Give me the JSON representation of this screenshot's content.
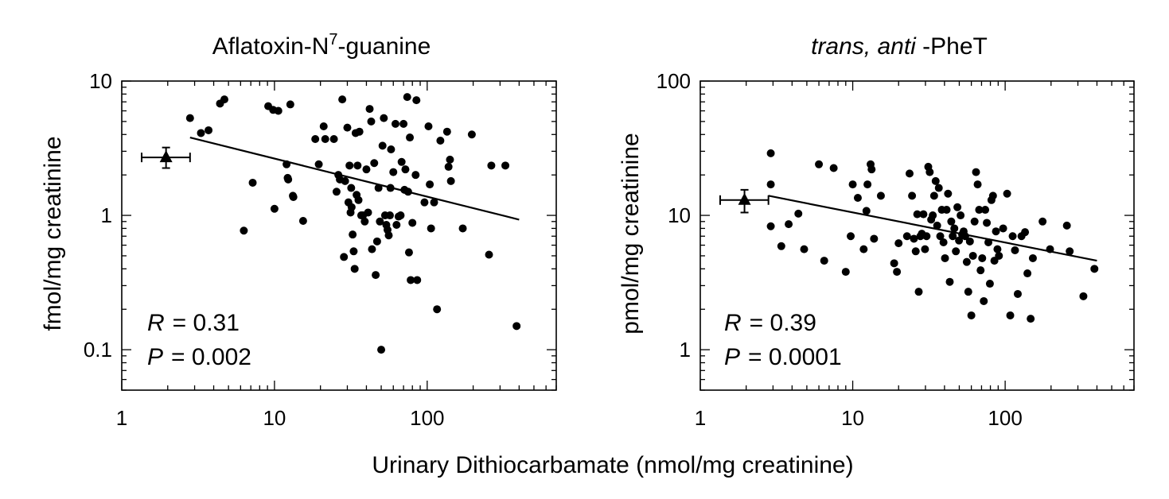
{
  "shared_xlabel": "Urinary Dithiocarbamate (nmol/mg creatinine)",
  "chart_data": [
    {
      "type": "scatter",
      "title_main": "Aflatoxin-N",
      "title_sup": "7",
      "title_rest": "-guanine",
      "ylabel": "fmol/mg creatinine",
      "x_scale": "log",
      "y_scale": "log",
      "xlim": [
        1,
        700
      ],
      "ylim": [
        0.05,
        10
      ],
      "x_ticks": [
        1,
        10,
        100
      ],
      "x_tick_labels": [
        "1",
        "10",
        "100"
      ],
      "y_ticks": [
        0.1,
        1,
        10
      ],
      "y_tick_labels": [
        "0.1",
        "1",
        "10"
      ],
      "stat_r_label": "R",
      "stat_r_value": "= 0.31",
      "stat_p_label": "P",
      "stat_p_value": "= 0.002",
      "reference_point": {
        "x": 1.95,
        "y": 2.7,
        "x_err": [
          1.35,
          2.8
        ],
        "y_err": [
          2.25,
          3.2
        ]
      },
      "fit_line": [
        [
          2.8,
          3.8
        ],
        [
          400,
          0.93
        ]
      ],
      "points": [
        [
          2.8,
          5.3
        ],
        [
          3.3,
          4.1
        ],
        [
          3.7,
          4.3
        ],
        [
          4.4,
          6.8
        ],
        [
          4.7,
          7.3
        ],
        [
          6.3,
          0.77
        ],
        [
          7.2,
          1.75
        ],
        [
          9.1,
          6.5
        ],
        [
          9.8,
          6.1
        ],
        [
          10.6,
          6.0
        ],
        [
          10,
          1.12
        ],
        [
          12,
          2.4
        ],
        [
          12.2,
          1.9
        ],
        [
          12.3,
          1.85
        ],
        [
          12.7,
          6.7
        ],
        [
          13.2,
          1.4
        ],
        [
          13.3,
          1.37
        ],
        [
          15.4,
          0.91
        ],
        [
          18.5,
          3.7
        ],
        [
          19.5,
          2.4
        ],
        [
          21,
          4.6
        ],
        [
          21.5,
          3.7
        ],
        [
          24.5,
          3.7
        ],
        [
          25.5,
          1.5
        ],
        [
          26.2,
          2.0
        ],
        [
          26.8,
          1.85
        ],
        [
          27.8,
          7.3
        ],
        [
          28.5,
          0.49
        ],
        [
          29,
          1.8
        ],
        [
          30,
          4.5
        ],
        [
          30.5,
          1.25
        ],
        [
          31,
          2.35
        ],
        [
          31.5,
          1.05
        ],
        [
          31.8,
          1.6
        ],
        [
          32,
          1.15
        ],
        [
          32.5,
          0.72
        ],
        [
          33,
          0.54
        ],
        [
          33.5,
          0.4
        ],
        [
          34,
          4.1
        ],
        [
          34.5,
          1.42
        ],
        [
          35,
          2.35
        ],
        [
          35.5,
          1.3
        ],
        [
          36,
          4.2
        ],
        [
          37,
          1.0
        ],
        [
          38,
          1.0
        ],
        [
          39,
          0.9
        ],
        [
          40,
          2.2
        ],
        [
          41,
          1.05
        ],
        [
          42,
          6.2
        ],
        [
          43,
          5.0
        ],
        [
          43.5,
          0.56
        ],
        [
          45,
          2.45
        ],
        [
          46,
          0.36
        ],
        [
          47,
          0.64
        ],
        [
          48,
          1.6
        ],
        [
          49,
          0.9
        ],
        [
          50,
          0.1
        ],
        [
          51,
          3.3
        ],
        [
          52,
          5.3
        ],
        [
          53,
          1.0
        ],
        [
          54,
          0.85
        ],
        [
          55,
          0.78
        ],
        [
          56,
          0.71
        ],
        [
          57,
          1.0
        ],
        [
          57.5,
          1.6
        ],
        [
          58,
          3.1
        ],
        [
          60,
          2.1
        ],
        [
          62,
          4.8
        ],
        [
          63,
          0.85
        ],
        [
          65,
          0.98
        ],
        [
          67,
          1.0
        ],
        [
          68,
          2.5
        ],
        [
          70,
          4.8
        ],
        [
          71,
          1.55
        ],
        [
          72,
          2.2
        ],
        [
          74,
          7.6
        ],
        [
          75,
          1.5
        ],
        [
          76,
          0.53
        ],
        [
          77,
          3.8
        ],
        [
          78,
          0.33
        ],
        [
          80,
          0.88
        ],
        [
          84,
          2.0
        ],
        [
          85,
          7.2
        ],
        [
          86,
          0.33
        ],
        [
          96,
          1.25
        ],
        [
          102,
          4.6
        ],
        [
          104,
          1.7
        ],
        [
          106,
          0.8
        ],
        [
          111,
          1.25
        ],
        [
          116,
          0.2
        ],
        [
          122,
          3.6
        ],
        [
          135,
          4.2
        ],
        [
          138,
          2.3
        ],
        [
          141,
          2.6
        ],
        [
          143,
          1.8
        ],
        [
          171,
          0.8
        ],
        [
          196,
          4.0
        ],
        [
          254,
          0.51
        ],
        [
          263,
          2.35
        ],
        [
          325,
          2.35
        ],
        [
          385,
          0.15
        ]
      ]
    },
    {
      "type": "scatter",
      "title_italic": "trans, anti",
      "title_rest": " -PheT",
      "ylabel": "pmol/mg creatinine",
      "x_scale": "log",
      "y_scale": "log",
      "xlim": [
        1,
        700
      ],
      "ylim": [
        0.5,
        100
      ],
      "x_ticks": [
        1,
        10,
        100
      ],
      "x_tick_labels": [
        "1",
        "10",
        "100"
      ],
      "y_ticks": [
        1,
        10,
        100
      ],
      "y_tick_labels": [
        "1",
        "10",
        "100"
      ],
      "stat_r_label": "R",
      "stat_r_value": "= 0.39",
      "stat_p_label": "P",
      "stat_p_value": "= 0.0001",
      "reference_point": {
        "x": 1.95,
        "y": 13,
        "x_err": [
          1.35,
          2.8
        ],
        "y_err": [
          10.5,
          15.5
        ]
      },
      "fit_line": [
        [
          2.8,
          14
        ],
        [
          400,
          4.6
        ]
      ],
      "points": [
        [
          2.9,
          29
        ],
        [
          2.9,
          17
        ],
        [
          2.9,
          8.3
        ],
        [
          3.4,
          5.9
        ],
        [
          3.8,
          8.6
        ],
        [
          4.4,
          10.3
        ],
        [
          4.8,
          5.6
        ],
        [
          6,
          24
        ],
        [
          6.5,
          4.6
        ],
        [
          7.5,
          22.5
        ],
        [
          9,
          3.8
        ],
        [
          9.7,
          7
        ],
        [
          10,
          17
        ],
        [
          10.8,
          13.5
        ],
        [
          11.8,
          5.6
        ],
        [
          12.3,
          10.8
        ],
        [
          12.5,
          17
        ],
        [
          13.1,
          24
        ],
        [
          13.3,
          22
        ],
        [
          13.8,
          6.7
        ],
        [
          15.3,
          14
        ],
        [
          18.7,
          4.4
        ],
        [
          19.5,
          3.8
        ],
        [
          20,
          6.2
        ],
        [
          22.7,
          7
        ],
        [
          23.6,
          20.5
        ],
        [
          24.5,
          14
        ],
        [
          25.2,
          6.7
        ],
        [
          25.9,
          5.4
        ],
        [
          26.5,
          10.2
        ],
        [
          27.1,
          2.7
        ],
        [
          27.8,
          7
        ],
        [
          28.4,
          7.3
        ],
        [
          29.1,
          10.2
        ],
        [
          29.8,
          5.6
        ],
        [
          30.5,
          7
        ],
        [
          31.3,
          23
        ],
        [
          32,
          21
        ],
        [
          32.7,
          9.3
        ],
        [
          33.5,
          10
        ],
        [
          34.2,
          14
        ],
        [
          35,
          18
        ],
        [
          35.8,
          8.4
        ],
        [
          36.7,
          16
        ],
        [
          37.5,
          7
        ],
        [
          38.4,
          11
        ],
        [
          39.4,
          6.3
        ],
        [
          40.3,
          4.8
        ],
        [
          41.3,
          11
        ],
        [
          42.2,
          14.5
        ],
        [
          43.3,
          3.2
        ],
        [
          44.3,
          9
        ],
        [
          45.3,
          7
        ],
        [
          46.4,
          8
        ],
        [
          47.5,
          5.4
        ],
        [
          48.6,
          11.5
        ],
        [
          49.8,
          6.5
        ],
        [
          51,
          10
        ],
        [
          52.2,
          7.2
        ],
        [
          53.4,
          7.6
        ],
        [
          54.7,
          7
        ],
        [
          56,
          4.5
        ],
        [
          57.3,
          2.7
        ],
        [
          58.7,
          6.4
        ],
        [
          60,
          1.8
        ],
        [
          61.5,
          5
        ],
        [
          63,
          9
        ],
        [
          64.4,
          21
        ],
        [
          66,
          17
        ],
        [
          67.5,
          11
        ],
        [
          69,
          3.9
        ],
        [
          70.7,
          4.8
        ],
        [
          72.4,
          2.3
        ],
        [
          74,
          11
        ],
        [
          75.8,
          8.8
        ],
        [
          77.6,
          6.3
        ],
        [
          79.4,
          3.1
        ],
        [
          81.3,
          13
        ],
        [
          83.2,
          14
        ],
        [
          85,
          4.6
        ],
        [
          87,
          7.6
        ],
        [
          89,
          5.6
        ],
        [
          91,
          5
        ],
        [
          97,
          8
        ],
        [
          103,
          14.5
        ],
        [
          108,
          1.8
        ],
        [
          112,
          7
        ],
        [
          116,
          5.5
        ],
        [
          121,
          2.6
        ],
        [
          128,
          7
        ],
        [
          135,
          7.5
        ],
        [
          140,
          3.7
        ],
        [
          147,
          1.7
        ],
        [
          152,
          4.8
        ],
        [
          176,
          9
        ],
        [
          197,
          5.6
        ],
        [
          254,
          8.4
        ],
        [
          265,
          5.4
        ],
        [
          326,
          2.5
        ],
        [
          385,
          4
        ]
      ]
    }
  ]
}
